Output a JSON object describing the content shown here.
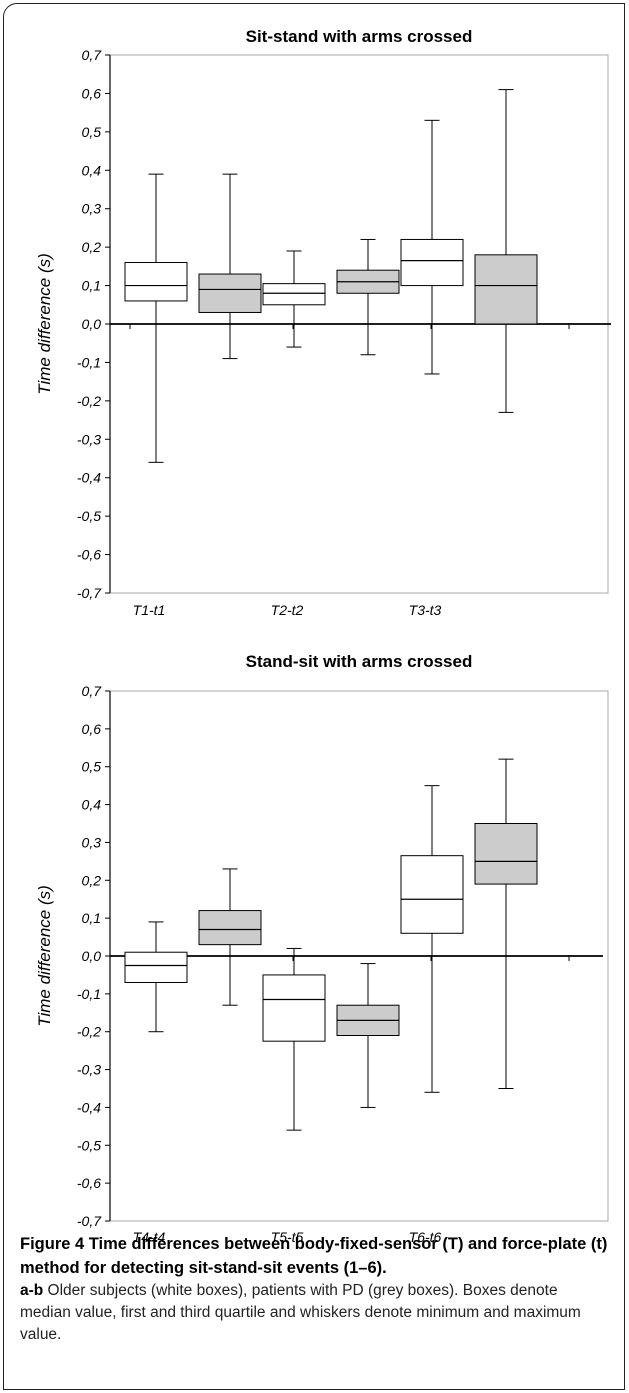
{
  "chart_data": [
    {
      "type": "box",
      "title": "Sit-stand with arms crossed",
      "ylabel": "Time difference (s)",
      "xlabel": "",
      "ylim": [
        -0.7,
        0.7
      ],
      "ytick_values": [
        -0.7,
        -0.6,
        -0.5,
        -0.4,
        -0.3,
        -0.2,
        -0.1,
        0.0,
        0.1,
        0.2,
        0.3,
        0.4,
        0.5,
        0.6,
        0.7
      ],
      "ytick_labels": [
        "-0,7",
        "-0,6",
        "-0,5",
        "-0,4",
        "-0,3",
        "-0,2",
        "-0,1",
        "0,0",
        "0,1",
        "0,2",
        "0,3",
        "0,4",
        "0,5",
        "0,6",
        "0,7"
      ],
      "categories": [
        "T1-t1",
        "T2-t2",
        "T3-t3"
      ],
      "series": [
        {
          "color": "#ffffff",
          "boxes": [
            {
              "min": -0.36,
              "q1": 0.06,
              "median": 0.1,
              "q3": 0.16,
              "max": 0.39
            },
            {
              "min": -0.06,
              "q1": 0.05,
              "median": 0.08,
              "q3": 0.105,
              "max": 0.19
            },
            {
              "min": -0.13,
              "q1": 0.1,
              "median": 0.165,
              "q3": 0.22,
              "max": 0.53
            }
          ]
        },
        {
          "color": "#cccccc",
          "boxes": [
            {
              "min": -0.09,
              "q1": 0.03,
              "median": 0.09,
              "q3": 0.13,
              "max": 0.39
            },
            {
              "min": -0.08,
              "q1": 0.08,
              "median": 0.11,
              "q3": 0.14,
              "max": 0.22
            },
            {
              "min": -0.23,
              "q1": 0.0,
              "median": 0.1,
              "q3": 0.18,
              "max": 0.61
            }
          ]
        }
      ]
    },
    {
      "type": "box",
      "title": "Stand-sit with arms crossed",
      "ylabel": "Time difference (s)",
      "xlabel": "",
      "ylim": [
        -0.7,
        0.7
      ],
      "ytick_values": [
        -0.7,
        -0.6,
        -0.5,
        -0.4,
        -0.3,
        -0.2,
        -0.1,
        0.0,
        0.1,
        0.2,
        0.3,
        0.4,
        0.5,
        0.6,
        0.7
      ],
      "ytick_labels": [
        "-0,7",
        "-0,6",
        "-0,5",
        "-0,4",
        "-0,3",
        "-0,2",
        "-0,1",
        "0,0",
        "0,1",
        "0,2",
        "0,3",
        "0,4",
        "0,5",
        "0,6",
        "0,7"
      ],
      "categories": [
        "T4-t4",
        "T5-t5",
        "T6-t6"
      ],
      "series": [
        {
          "color": "#ffffff",
          "boxes": [
            {
              "min": -0.2,
              "q1": -0.07,
              "median": -0.025,
              "q3": 0.01,
              "max": 0.09
            },
            {
              "min": -0.46,
              "q1": -0.225,
              "median": -0.115,
              "q3": -0.05,
              "max": 0.02
            },
            {
              "min": -0.36,
              "q1": 0.06,
              "median": 0.15,
              "q3": 0.265,
              "max": 0.45
            }
          ]
        },
        {
          "color": "#cccccc",
          "boxes": [
            {
              "min": -0.13,
              "q1": 0.03,
              "median": 0.07,
              "q3": 0.12,
              "max": 0.23
            },
            {
              "min": -0.4,
              "q1": -0.21,
              "median": -0.17,
              "q3": -0.13,
              "max": -0.02
            },
            {
              "min": -0.35,
              "q1": 0.19,
              "median": 0.25,
              "q3": 0.35,
              "max": 0.52
            }
          ]
        }
      ]
    }
  ],
  "caption": {
    "title": "Figure 4 Time differences between body-fixed-sensor (T) and force-plate (t) method for detecting sit-stand-sit events (1–6).",
    "lead": "a-b",
    "body": " Older subjects (white boxes), patients with PD (grey boxes). Boxes denote median value, first and third quartile and whiskers denote minimum and maximum value."
  }
}
